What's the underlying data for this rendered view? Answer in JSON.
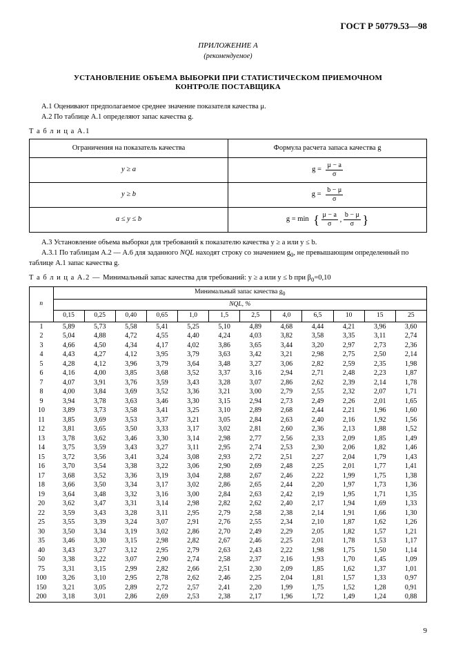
{
  "doc_id": "ГОСТ Р 50779.53—98",
  "appendix_label": "ПРИЛОЖЕНИЕ А",
  "appendix_sub": "(рекомендуемое)",
  "title_line1": "УСТАНОВЛЕНИЕ ОБЪЕМА ВЫБОРКИ ПРИ СТАТИСТИЧЕСКОМ ПРИЕМОЧНОМ",
  "title_line2": "КОНТРОЛЕ ПОСТАВЩИКА",
  "p_a1": "А.1   Оценивают предполагаемое среднее значение показателя качества μ.",
  "p_a2": "А.2   По таблице А.1 определяют запас качества g.",
  "tableA1": {
    "caption": "Т а б л и ц а   А.1",
    "head_left": "Ограничения на показатель качества",
    "head_right": "Формула расчета запаса качества g",
    "rows": [
      {
        "cond": "y ≥ a",
        "prefix": "g =",
        "num": "μ − a",
        "den": "σ"
      },
      {
        "cond": "y ≥ b",
        "prefix": "g =",
        "num": "b − μ",
        "den": "σ"
      },
      {
        "cond": "a ≤ y ≤ b",
        "prefix": "g = min",
        "num1": "μ − a",
        "den1": "σ",
        "num2": "b − μ",
        "den2": "σ"
      }
    ]
  },
  "p_a3": "А.3   Установление объема выборки для требований к показателю качества y ≥ a или y ≤ b.",
  "p_a31_part1": "А.3.1   По таблицам А.2 — А.6 для заданного ",
  "p_a31_nql": "NQL",
  "p_a31_part2": " находят строку со значением g",
  "p_a31_sub": "0",
  "p_a31_part3": ", не превышающим определенный по таблице А.1 запас качества g.",
  "tableA2": {
    "caption_prefix": "Т а б л и ц а   А.2 — ",
    "caption_text": "Минимальный запас качества для требований: y ≥ a или y ≤ b при β",
    "caption_sub": "0",
    "caption_tail": "=0,10",
    "head_main": "Минимальный запас качества g",
    "head_main_sub": "0",
    "n_label": "n",
    "nql_label": "NQL, %",
    "nql_values": [
      "0,15",
      "0,25",
      "0,40",
      "0,65",
      "1,0",
      "1,5",
      "2,5",
      "4,0",
      "6,5",
      "10",
      "15",
      "25"
    ],
    "rows": [
      {
        "n": "1",
        "v": [
          "5,89",
          "5,73",
          "5,58",
          "5,41",
          "5,25",
          "5,10",
          "4,89",
          "4,68",
          "4,44",
          "4,21",
          "3,96",
          "3,60"
        ]
      },
      {
        "n": "2",
        "v": [
          "5,04",
          "4,88",
          "4,72",
          "4,55",
          "4,40",
          "4,24",
          "4,03",
          "3,82",
          "3,58",
          "3,35",
          "3,11",
          "2,74"
        ]
      },
      {
        "n": "3",
        "v": [
          "4,66",
          "4,50",
          "4,34",
          "4,17",
          "4,02",
          "3,86",
          "3,65",
          "3,44",
          "3,20",
          "2,97",
          "2,73",
          "2,36"
        ]
      },
      {
        "n": "4",
        "v": [
          "4,43",
          "4,27",
          "4,12",
          "3,95",
          "3,79",
          "3,63",
          "3,42",
          "3,21",
          "2,98",
          "2,75",
          "2,50",
          "2,14"
        ]
      },
      {
        "n": "5",
        "v": [
          "4,28",
          "4,12",
          "3,96",
          "3,79",
          "3,64",
          "3,48",
          "3,27",
          "3,06",
          "2,82",
          "2,59",
          "2,35",
          "1,98"
        ]
      },
      {
        "n": "6",
        "v": [
          "4,16",
          "4,00",
          "3,85",
          "3,68",
          "3,52",
          "3,37",
          "3,16",
          "2,94",
          "2,71",
          "2,48",
          "2,23",
          "1,87"
        ]
      },
      {
        "n": "7",
        "v": [
          "4,07",
          "3,91",
          "3,76",
          "3,59",
          "3,43",
          "3,28",
          "3,07",
          "2,86",
          "2,62",
          "2,39",
          "2,14",
          "1,78"
        ]
      },
      {
        "n": "8",
        "v": [
          "4,00",
          "3,84",
          "3,69",
          "3,52",
          "3,36",
          "3,21",
          "3,00",
          "2,79",
          "2,55",
          "2,32",
          "2,07",
          "1,71"
        ]
      },
      {
        "n": "9",
        "v": [
          "3,94",
          "3,78",
          "3,63",
          "3,46",
          "3,30",
          "3,15",
          "2,94",
          "2,73",
          "2,49",
          "2,26",
          "2,01",
          "1,65"
        ]
      },
      {
        "n": "10",
        "v": [
          "3,89",
          "3,73",
          "3,58",
          "3,41",
          "3,25",
          "3,10",
          "2,89",
          "2,68",
          "2,44",
          "2,21",
          "1,96",
          "1,60"
        ]
      },
      {
        "n": "11",
        "v": [
          "3,85",
          "3,69",
          "3,53",
          "3,37",
          "3,21",
          "3,05",
          "2,84",
          "2,63",
          "2,40",
          "2,16",
          "1,92",
          "1,56"
        ]
      },
      {
        "n": "12",
        "v": [
          "3,81",
          "3,65",
          "3,50",
          "3,33",
          "3,17",
          "3,02",
          "2,81",
          "2,60",
          "2,36",
          "2,13",
          "1,88",
          "1,52"
        ]
      },
      {
        "n": "13",
        "v": [
          "3,78",
          "3,62",
          "3,46",
          "3,30",
          "3,14",
          "2,98",
          "2,77",
          "2,56",
          "2,33",
          "2,09",
          "1,85",
          "1,49"
        ]
      },
      {
        "n": "14",
        "v": [
          "3,75",
          "3,59",
          "3,43",
          "3,27",
          "3,11",
          "2,95",
          "2,74",
          "2,53",
          "2,30",
          "2,06",
          "1,82",
          "1,46"
        ]
      },
      {
        "n": "15",
        "v": [
          "3,72",
          "3,56",
          "3,41",
          "3,24",
          "3,08",
          "2,93",
          "2,72",
          "2,51",
          "2,27",
          "2,04",
          "1,79",
          "1,43"
        ]
      },
      {
        "n": "16",
        "v": [
          "3,70",
          "3,54",
          "3,38",
          "3,22",
          "3,06",
          "2,90",
          "2,69",
          "2,48",
          "2,25",
          "2,01",
          "1,77",
          "1,41"
        ]
      },
      {
        "n": "17",
        "v": [
          "3,68",
          "3,52",
          "3,36",
          "3,19",
          "3,04",
          "2,88",
          "2,67",
          "2,46",
          "2,22",
          "1,99",
          "1,75",
          "1,38"
        ]
      },
      {
        "n": "18",
        "v": [
          "3,66",
          "3,50",
          "3,34",
          "3,17",
          "3,02",
          "2,86",
          "2,65",
          "2,44",
          "2,20",
          "1,97",
          "1,73",
          "1,36"
        ]
      },
      {
        "n": "19",
        "v": [
          "3,64",
          "3,48",
          "3,32",
          "3,16",
          "3,00",
          "2,84",
          "2,63",
          "2,42",
          "2,19",
          "1,95",
          "1,71",
          "1,35"
        ]
      },
      {
        "n": "20",
        "v": [
          "3,62",
          "3,47",
          "3,31",
          "3,14",
          "2,98",
          "2,82",
          "2,62",
          "2,40",
          "2,17",
          "1,94",
          "1,69",
          "1,33"
        ]
      },
      {
        "n": "22",
        "v": [
          "3,59",
          "3,43",
          "3,28",
          "3,11",
          "2,95",
          "2,79",
          "2,58",
          "2,38",
          "2,14",
          "1,91",
          "1,66",
          "1,30"
        ]
      },
      {
        "n": "25",
        "v": [
          "3,55",
          "3,39",
          "3,24",
          "3,07",
          "2,91",
          "2,76",
          "2,55",
          "2,34",
          "2,10",
          "1,87",
          "1,62",
          "1,26"
        ]
      },
      {
        "n": "30",
        "v": [
          "3,50",
          "3,34",
          "3,19",
          "3,02",
          "2,86",
          "2,70",
          "2,49",
          "2,29",
          "2,05",
          "1,82",
          "1,57",
          "1,21"
        ]
      },
      {
        "n": "35",
        "v": [
          "3,46",
          "3,30",
          "3,15",
          "2,98",
          "2,82",
          "2,67",
          "2,46",
          "2,25",
          "2,01",
          "1,78",
          "1,53",
          "1,17"
        ]
      },
      {
        "n": "40",
        "v": [
          "3,43",
          "3,27",
          "3,12",
          "2,95",
          "2,79",
          "2,63",
          "2,43",
          "2,22",
          "1,98",
          "1,75",
          "1,50",
          "1,14"
        ]
      },
      {
        "n": "50",
        "v": [
          "3,38",
          "3,22",
          "3,07",
          "2,90",
          "2,74",
          "2,58",
          "2,37",
          "2,16",
          "1,93",
          "1,70",
          "1,45",
          "1,09"
        ]
      },
      {
        "n": "75",
        "v": [
          "3,31",
          "3,15",
          "2,99",
          "2,82",
          "2,66",
          "2,51",
          "2,30",
          "2,09",
          "1,85",
          "1,62",
          "1,37",
          "1,01"
        ]
      },
      {
        "n": "100",
        "v": [
          "3,26",
          "3,10",
          "2,95",
          "2,78",
          "2,62",
          "2,46",
          "2,25",
          "2,04",
          "1,81",
          "1,57",
          "1,33",
          "0,97"
        ]
      },
      {
        "n": "150",
        "v": [
          "3,21",
          "3,05",
          "2,89",
          "2,72",
          "2,57",
          "2,41",
          "2,20",
          "1,99",
          "1,75",
          "1,52",
          "1,28",
          "0,91"
        ]
      },
      {
        "n": "200",
        "v": [
          "3,18",
          "3,01",
          "2,86",
          "2,69",
          "2,53",
          "2,38",
          "2,17",
          "1,96",
          "1,72",
          "1,49",
          "1,24",
          "0,88"
        ]
      }
    ]
  },
  "page_number": "9"
}
